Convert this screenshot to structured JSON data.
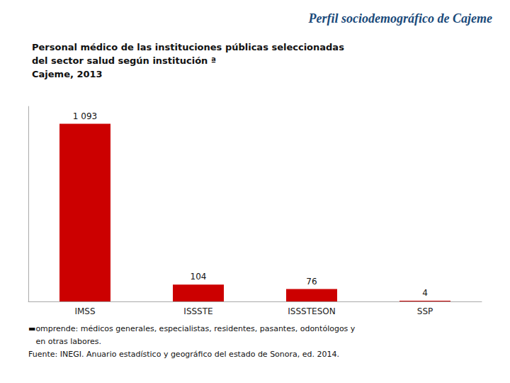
{
  "chart_data": {
    "type": "bar",
    "title": "Perfil sociodemográfico de Cajeme",
    "subtitle": "Personal médico de las instituciones públicas seleccionadas\ndel sector salud según institución ª\nCajeme, 2013",
    "categories": [
      "IMSS",
      "ISSSTE",
      "ISSSTESON",
      "SSP"
    ],
    "values": [
      1093,
      104,
      76,
      4
    ],
    "value_labels": [
      "1 093",
      "104",
      "76",
      "4"
    ],
    "data_labels": true,
    "color": "#CC0000",
    "ylim": [
      0,
      1200
    ],
    "grid": false,
    "tick_labels": "x",
    "annotations": [
      "▬omprende: médicos generales, especialistas, residentes, pasantes, odontólogos y",
      "   en otras labores.",
      "Fuente: INEGI. Anuario estadístico y geográfico del estado de Sonora, ed. 2014."
    ]
  }
}
